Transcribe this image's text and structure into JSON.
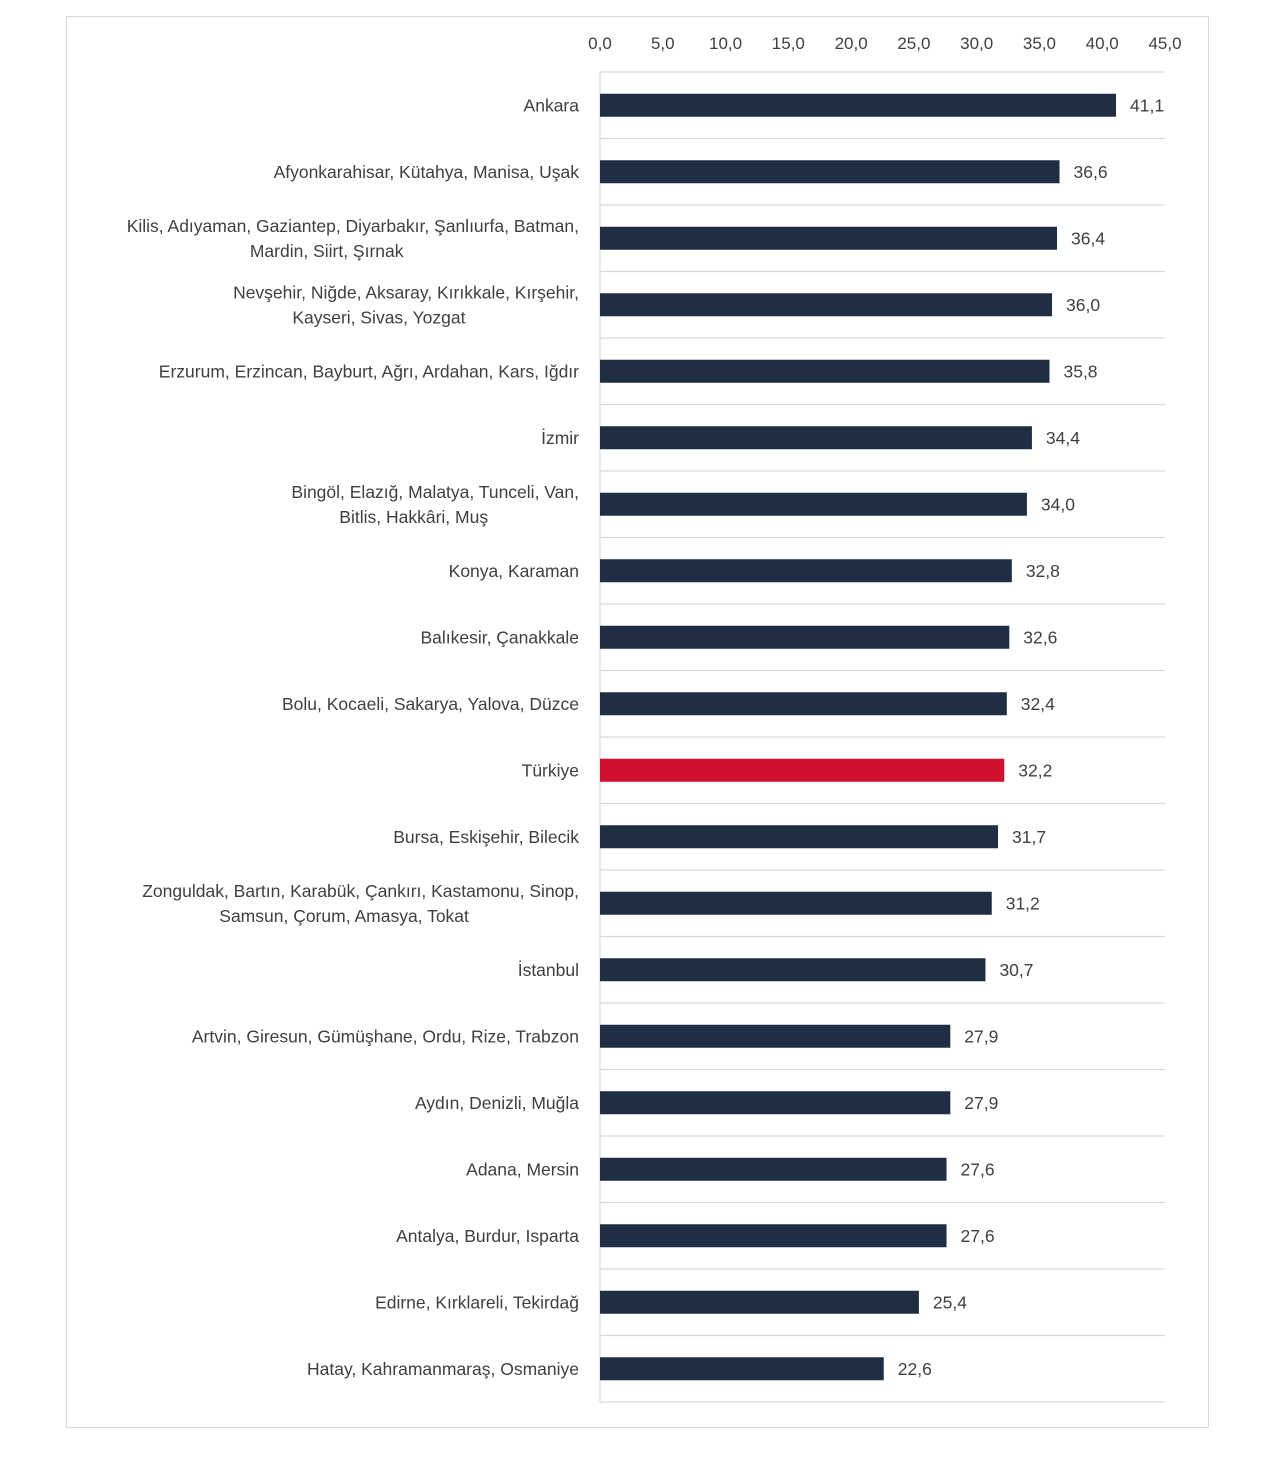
{
  "chart_data": {
    "type": "bar",
    "orientation": "horizontal",
    "title": "",
    "xlabel": "",
    "ylabel": "",
    "xlim": [
      0,
      45
    ],
    "ticks": [
      "0,0",
      "5,0",
      "10,0",
      "15,0",
      "20,0",
      "25,0",
      "30,0",
      "35,0",
      "40,0",
      "45,0"
    ],
    "tick_values": [
      0,
      5,
      10,
      15,
      20,
      25,
      30,
      35,
      40,
      45
    ],
    "colors": {
      "default": "#1f2e43",
      "highlight": "#d0102e",
      "grid": "#d9d9d9",
      "text": "#404040"
    },
    "categories": [
      {
        "lines": [
          "Ankara"
        ],
        "value": 41.1,
        "label": "41,1",
        "highlight": false
      },
      {
        "lines": [
          "Afyonkarahisar, Kütahya, Manisa, Uşak"
        ],
        "value": 36.6,
        "label": "36,6",
        "highlight": false
      },
      {
        "lines": [
          "Kilis, Adıyaman, Gaziantep, Diyarbakır, Şanlıurfa, Batman,",
          "Mardin, Siirt, Şırnak"
        ],
        "value": 36.4,
        "label": "36,4",
        "highlight": false
      },
      {
        "lines": [
          "Nevşehir, Niğde, Aksaray, Kırıkkale, Kırşehir,",
          "Kayseri, Sivas, Yozgat"
        ],
        "value": 36.0,
        "label": "36,0",
        "highlight": false
      },
      {
        "lines": [
          "Erzurum, Erzincan, Bayburt, Ağrı, Ardahan, Kars, Iğdır"
        ],
        "value": 35.8,
        "label": "35,8",
        "highlight": false
      },
      {
        "lines": [
          "İzmir"
        ],
        "value": 34.4,
        "label": "34,4",
        "highlight": false
      },
      {
        "lines": [
          "Bingöl, Elazığ, Malatya, Tunceli, Van,",
          "Bitlis, Hakkâri, Muş"
        ],
        "value": 34.0,
        "label": "34,0",
        "highlight": false
      },
      {
        "lines": [
          "Konya, Karaman"
        ],
        "value": 32.8,
        "label": "32,8",
        "highlight": false
      },
      {
        "lines": [
          "Balıkesir, Çanakkale"
        ],
        "value": 32.6,
        "label": "32,6",
        "highlight": false
      },
      {
        "lines": [
          "Bolu, Kocaeli, Sakarya, Yalova, Düzce"
        ],
        "value": 32.4,
        "label": "32,4",
        "highlight": false
      },
      {
        "lines": [
          "Türkiye"
        ],
        "value": 32.2,
        "label": "32,2",
        "highlight": true
      },
      {
        "lines": [
          "Bursa, Eskişehir, Bilecik"
        ],
        "value": 31.7,
        "label": "31,7",
        "highlight": false
      },
      {
        "lines": [
          "Zonguldak, Bartın, Karabük, Çankırı, Kastamonu, Sinop,",
          "Samsun, Çorum, Amasya, Tokat"
        ],
        "value": 31.2,
        "label": "31,2",
        "highlight": false
      },
      {
        "lines": [
          "İstanbul"
        ],
        "value": 30.7,
        "label": "30,7",
        "highlight": false
      },
      {
        "lines": [
          "Artvin, Giresun, Gümüşhane, Ordu, Rize, Trabzon"
        ],
        "value": 27.9,
        "label": "27,9",
        "highlight": false
      },
      {
        "lines": [
          "Aydın, Denizli, Muğla"
        ],
        "value": 27.9,
        "label": "27,9",
        "highlight": false
      },
      {
        "lines": [
          "Adana, Mersin"
        ],
        "value": 27.6,
        "label": "27,6",
        "highlight": false
      },
      {
        "lines": [
          "Antalya, Burdur, Isparta"
        ],
        "value": 27.6,
        "label": "27,6",
        "highlight": false
      },
      {
        "lines": [
          "Edirne, Kırklareli, Tekirdağ"
        ],
        "value": 25.4,
        "label": "25,4",
        "highlight": false
      },
      {
        "lines": [
          "Hatay, Kahramanmaraş, Osmaniye"
        ],
        "value": 22.6,
        "label": "22,6",
        "highlight": false
      }
    ]
  }
}
